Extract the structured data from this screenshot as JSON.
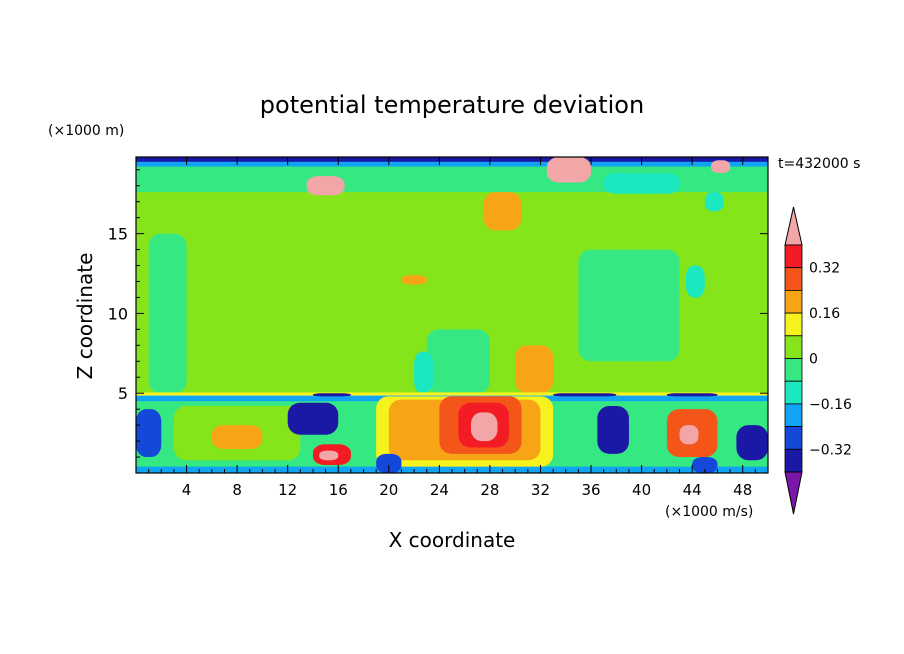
{
  "chart_data": {
    "type": "heatmap",
    "title": "potential temperature deviation",
    "xlabel": "X coordinate",
    "ylabel": "Z coordinate",
    "x_unit": "(×1000 m/s)",
    "y_unit": "(×1000 m)",
    "time_label": "t=432000 s",
    "xlim": [
      0,
      50
    ],
    "ylim": [
      0,
      19.8
    ],
    "x_ticks": [
      "4",
      "8",
      "12",
      "16",
      "20",
      "24",
      "28",
      "32",
      "36",
      "40",
      "44",
      "48"
    ],
    "y_ticks": [
      "5",
      "10",
      "15"
    ],
    "colorbar": {
      "labels": [
        "0.32",
        "0.16",
        "0",
        "−0.16",
        "−0.32"
      ],
      "levels": [
        -0.4,
        -0.32,
        -0.24,
        -0.16,
        -0.08,
        0,
        0.08,
        0.16,
        0.24,
        0.32,
        0.4
      ],
      "colors": [
        "#7b16a8",
        "#1c18a6",
        "#1448d8",
        "#10a4f4",
        "#1ce8c0",
        "#36e882",
        "#86e41a",
        "#f6f21e",
        "#f7a516",
        "#f4561a",
        "#f41c24",
        "#f2a6a8"
      ]
    },
    "regions": [
      {
        "level": 0.04,
        "x": [
          0,
          50
        ],
        "z": [
          5,
          19.2
        ]
      },
      {
        "level": -0.04,
        "x": [
          0,
          50
        ],
        "z": [
          17.6,
          19.2
        ]
      },
      {
        "level": -0.2,
        "x": [
          0,
          50
        ],
        "z": [
          19.2,
          19.8
        ]
      },
      {
        "level": -0.36,
        "x": [
          0,
          50
        ],
        "z": [
          19.5,
          19.8
        ]
      },
      {
        "level": 0.44,
        "x": [
          13.5,
          16.5
        ],
        "z": [
          17.4,
          18.6
        ]
      },
      {
        "level": 0.44,
        "x": [
          32.5,
          36
        ],
        "z": [
          18.2,
          19.8
        ]
      },
      {
        "level": 0.44,
        "x": [
          45.5,
          47
        ],
        "z": [
          18.8,
          19.6
        ]
      },
      {
        "level": 0.2,
        "x": [
          27.5,
          30.5
        ],
        "z": [
          15.2,
          17.6
        ]
      },
      {
        "level": 0.2,
        "x": [
          21,
          23
        ],
        "z": [
          11.8,
          12.4
        ]
      },
      {
        "level": 0.2,
        "x": [
          30,
          33
        ],
        "z": [
          5,
          8
        ]
      },
      {
        "level": -0.04,
        "x": [
          1,
          4
        ],
        "z": [
          5,
          15
        ]
      },
      {
        "level": -0.04,
        "x": [
          35,
          43
        ],
        "z": [
          7,
          14
        ]
      },
      {
        "level": -0.04,
        "x": [
          23,
          28
        ],
        "z": [
          5,
          9
        ]
      },
      {
        "level": -0.12,
        "x": [
          43.5,
          45
        ],
        "z": [
          11,
          13
        ]
      },
      {
        "level": -0.12,
        "x": [
          22,
          23.5
        ],
        "z": [
          5,
          7.6
        ]
      },
      {
        "level": -0.12,
        "x": [
          45,
          46.5
        ],
        "z": [
          16.4,
          17.6
        ]
      },
      {
        "level": -0.12,
        "x": [
          37,
          43
        ],
        "z": [
          17.5,
          18.8
        ]
      },
      {
        "level": 0.12,
        "x": [
          0,
          50
        ],
        "z": [
          4.85,
          5.05
        ]
      },
      {
        "level": -0.2,
        "x": [
          0,
          50
        ],
        "z": [
          0,
          4.85
        ]
      },
      {
        "level": -0.04,
        "x": [
          0,
          50
        ],
        "z": [
          0.4,
          4.5
        ]
      },
      {
        "level": 0.04,
        "x": [
          3,
          13
        ],
        "z": [
          0.8,
          4.2
        ]
      },
      {
        "level": 0.12,
        "x": [
          19,
          33
        ],
        "z": [
          0.4,
          4.8
        ]
      },
      {
        "level": 0.2,
        "x": [
          20,
          32
        ],
        "z": [
          0.8,
          4.6
        ]
      },
      {
        "level": 0.28,
        "x": [
          24,
          30.5
        ],
        "z": [
          1.2,
          4.8
        ]
      },
      {
        "level": 0.36,
        "x": [
          25.5,
          29.5
        ],
        "z": [
          1.6,
          4.4
        ]
      },
      {
        "level": 0.44,
        "x": [
          26.5,
          28.6
        ],
        "z": [
          2,
          3.8
        ]
      },
      {
        "level": 0.2,
        "x": [
          6,
          10
        ],
        "z": [
          1.5,
          3
        ]
      },
      {
        "level": 0.36,
        "x": [
          14,
          17
        ],
        "z": [
          0.5,
          1.8
        ]
      },
      {
        "level": 0.44,
        "x": [
          14.5,
          16
        ],
        "z": [
          0.8,
          1.4
        ]
      },
      {
        "level": 0.28,
        "x": [
          42,
          46
        ],
        "z": [
          1,
          4
        ]
      },
      {
        "level": 0.44,
        "x": [
          43,
          44.5
        ],
        "z": [
          1.8,
          3
        ]
      },
      {
        "level": -0.36,
        "x": [
          12,
          16
        ],
        "z": [
          2.4,
          4.4
        ]
      },
      {
        "level": -0.36,
        "x": [
          36.5,
          39
        ],
        "z": [
          1.2,
          4.2
        ]
      },
      {
        "level": -0.36,
        "x": [
          47.5,
          50
        ],
        "z": [
          0.8,
          3
        ]
      },
      {
        "level": -0.28,
        "x": [
          0,
          2
        ],
        "z": [
          1,
          4
        ]
      },
      {
        "level": -0.28,
        "x": [
          44,
          46
        ],
        "z": [
          0,
          1
        ]
      },
      {
        "level": -0.28,
        "x": [
          19,
          21
        ],
        "z": [
          0,
          1.2
        ]
      },
      {
        "level": -0.36,
        "x": [
          14,
          17
        ],
        "z": [
          4.8,
          5
        ]
      },
      {
        "level": -0.36,
        "x": [
          33,
          38
        ],
        "z": [
          4.8,
          5
        ]
      },
      {
        "level": -0.36,
        "x": [
          42,
          46
        ],
        "z": [
          4.8,
          5
        ]
      }
    ]
  }
}
